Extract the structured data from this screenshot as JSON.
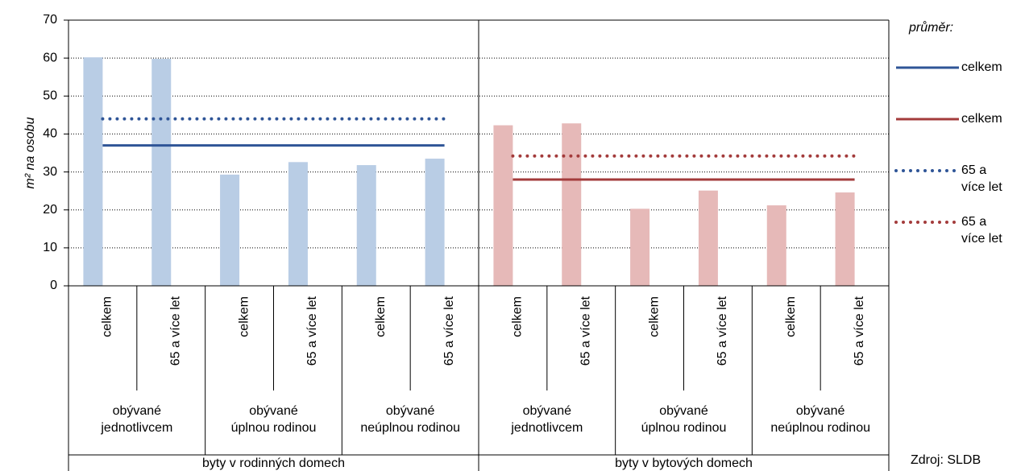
{
  "chart_data": {
    "type": "bar",
    "y_label": "m² na osobu",
    "ylim": [
      0,
      70
    ],
    "yticks": [
      0,
      10,
      20,
      30,
      40,
      50,
      60,
      70
    ],
    "grid": true,
    "categories": [
      "celkem",
      "65 a více let",
      "celkem",
      "65 a více let",
      "celkem",
      "65 a více let",
      "celkem",
      "65 a více let",
      "celkem",
      "65 a více let",
      "celkem",
      "65 a více let"
    ],
    "subgroups": [
      [
        "obývané",
        "jednotlivcem"
      ],
      [
        "obývané",
        "úplnou rodinou"
      ],
      [
        "obývané",
        "neúplnou rodinou"
      ],
      [
        "obývané",
        "jednotlivcem"
      ],
      [
        "obývané",
        "úplnou rodinou"
      ],
      [
        "obývané",
        "neúplnou rodinou"
      ]
    ],
    "groups": [
      "byty v rodinných domech",
      "byty v bytových domech"
    ],
    "group_colors": [
      "#b9cde5",
      "#e6b9b8"
    ],
    "values": [
      60.2,
      59.8,
      29.3,
      32.6,
      31.8,
      33.5,
      42.3,
      42.8,
      20.3,
      25.1,
      21.2,
      24.6
    ],
    "legend_title": "průměr:",
    "averages": [
      {
        "name": "celkem",
        "color": "#2f5597",
        "style": "solid",
        "group": 0,
        "value": 37
      },
      {
        "name": "celkem",
        "color": "#a33b3b",
        "style": "solid",
        "group": 1,
        "value": 28
      },
      {
        "name": "65 a více let",
        "color": "#2f5597",
        "style": "dotted",
        "group": 0,
        "value": 44
      },
      {
        "name": "65 a více let",
        "color": "#a33b3b",
        "style": "dotted",
        "group": 1,
        "value": 34.2
      }
    ],
    "source": "Zdroj: SLDB"
  }
}
